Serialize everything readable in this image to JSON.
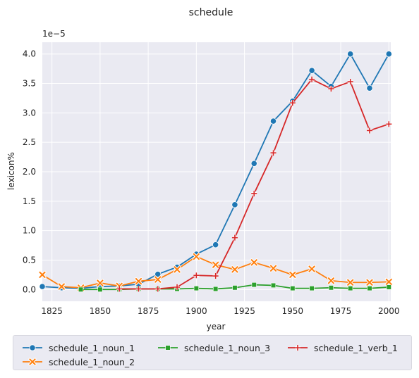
{
  "chart_data": {
    "type": "line",
    "title": "schedule",
    "xlabel": "year",
    "ylabel": "lexicon%",
    "y_offset_text": "1e−5",
    "xlim": [
      1820,
      2001
    ],
    "ylim": [
      -0.2,
      4.2
    ],
    "x_ticks": [
      1825,
      1850,
      1875,
      1900,
      1925,
      1950,
      1975,
      2000
    ],
    "y_ticks": [
      0.0,
      0.5,
      1.0,
      1.5,
      2.0,
      2.5,
      3.0,
      3.5,
      4.0
    ],
    "grid": true,
    "legend_position": "below",
    "x": [
      1820,
      1830,
      1840,
      1850,
      1860,
      1870,
      1880,
      1890,
      1900,
      1910,
      1920,
      1930,
      1940,
      1950,
      1960,
      1970,
      1980,
      1990,
      2000
    ],
    "series": [
      {
        "name": "schedule_1_noun_1",
        "color": "#1f77b4",
        "marker": "circle",
        "x": [
          1820,
          1830,
          1840,
          1850,
          1860,
          1870,
          1880,
          1890,
          1900,
          1910,
          1920,
          1930,
          1940,
          1950,
          1960,
          1970,
          1980,
          1990,
          2000
        ],
        "values": [
          0.05,
          0.03,
          0.02,
          0.05,
          0.06,
          0.09,
          0.26,
          0.38,
          0.6,
          0.76,
          1.44,
          2.14,
          2.86,
          3.2,
          3.72,
          3.45,
          4.0,
          3.42,
          4.0
        ]
      },
      {
        "name": "schedule_1_noun_2",
        "color": "#ff7f0e",
        "marker": "x",
        "x": [
          1820,
          1830,
          1840,
          1850,
          1860,
          1870,
          1880,
          1890,
          1900,
          1910,
          1920,
          1930,
          1940,
          1950,
          1960,
          1970,
          1980,
          1990,
          2000
        ],
        "values": [
          0.25,
          0.05,
          0.03,
          0.11,
          0.06,
          0.14,
          0.17,
          0.34,
          0.56,
          0.42,
          0.34,
          0.46,
          0.36,
          0.25,
          0.35,
          0.15,
          0.12,
          0.12,
          0.13
        ]
      },
      {
        "name": "schedule_1_noun_3",
        "color": "#2ca02c",
        "marker": "square",
        "x": [
          1840,
          1850,
          1860,
          1870,
          1880,
          1890,
          1900,
          1910,
          1920,
          1930,
          1940,
          1950,
          1960,
          1970,
          1980,
          1990,
          2000
        ],
        "values": [
          0.0,
          0.0,
          0.0,
          0.01,
          0.01,
          0.01,
          0.02,
          0.01,
          0.03,
          0.08,
          0.07,
          0.02,
          0.02,
          0.03,
          0.02,
          0.02,
          0.04
        ]
      },
      {
        "name": "schedule_1_verb_1",
        "color": "#d62728",
        "marker": "plus",
        "x": [
          1860,
          1870,
          1880,
          1890,
          1900,
          1910,
          1920,
          1930,
          1940,
          1950,
          1960,
          1970,
          1980,
          1990,
          2000
        ],
        "values": [
          0.01,
          0.01,
          0.01,
          0.04,
          0.24,
          0.23,
          0.88,
          1.63,
          2.32,
          3.17,
          3.57,
          3.41,
          3.53,
          2.7,
          2.81
        ]
      }
    ]
  }
}
